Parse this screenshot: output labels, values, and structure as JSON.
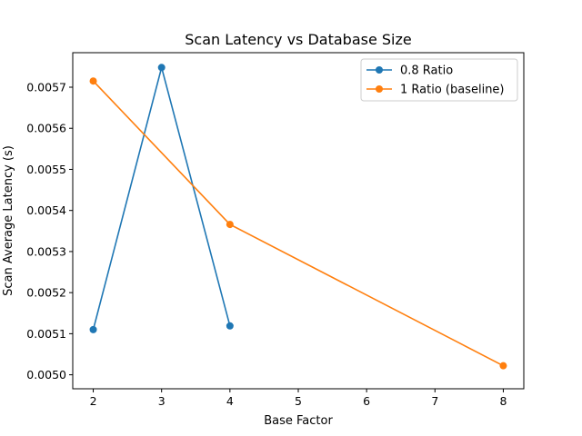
{
  "chart_data": {
    "type": "line",
    "title": "Scan Latency vs Database Size",
    "xlabel": "Base Factor",
    "ylabel": "Scan Average Latency (s)",
    "xlim": [
      1.7,
      8.3
    ],
    "ylim": [
      0.004966,
      0.005784
    ],
    "x_ticks": [
      2,
      3,
      4,
      5,
      6,
      7,
      8
    ],
    "x_tick_labels": [
      "2",
      "3",
      "4",
      "5",
      "6",
      "7",
      "8"
    ],
    "y_ticks": [
      0.005,
      0.0051,
      0.0052,
      0.0053,
      0.0054,
      0.0055,
      0.0056,
      0.0057
    ],
    "y_tick_labels": [
      "0.0050",
      "0.0051",
      "0.0052",
      "0.0053",
      "0.0054",
      "0.0055",
      "0.0056",
      "0.0057"
    ],
    "grid": false,
    "legend_position": "top-right",
    "series": [
      {
        "name": "0.8 Ratio",
        "color": "#1f77b4",
        "marker": "circle",
        "x": [
          2,
          3,
          4
        ],
        "y": [
          0.00511,
          0.005748,
          0.005119
        ]
      },
      {
        "name": "1 Ratio (baseline)",
        "color": "#ff7f0e",
        "marker": "circle",
        "x": [
          2,
          4,
          8
        ],
        "y": [
          0.005715,
          0.005366,
          0.005022
        ]
      }
    ]
  }
}
